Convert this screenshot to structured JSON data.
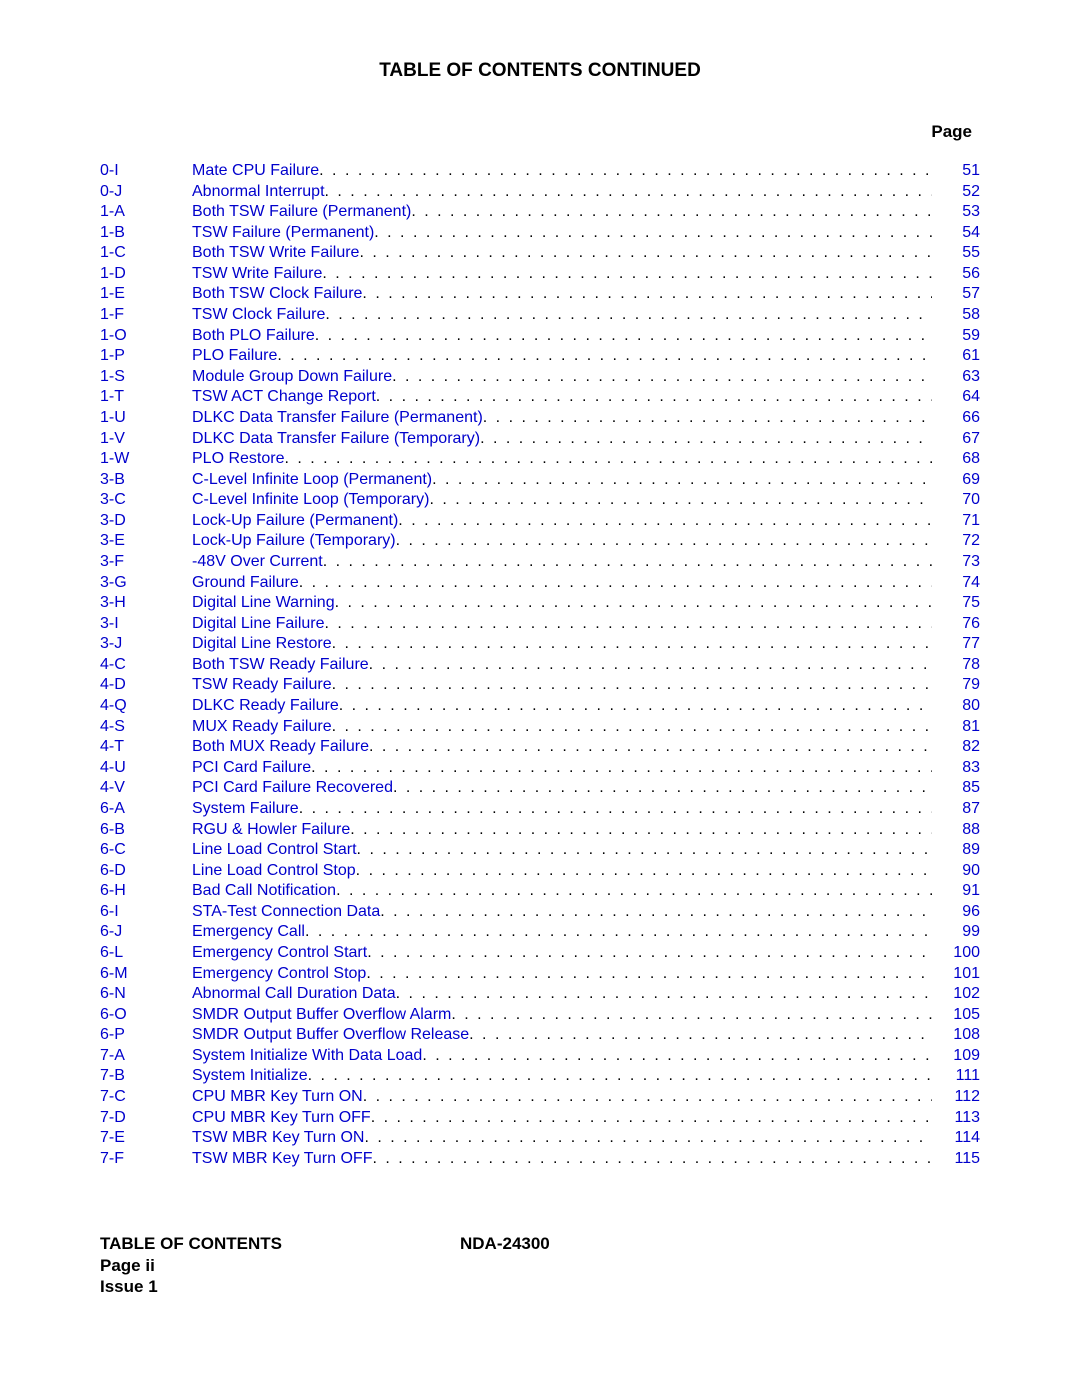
{
  "title": "TABLE OF CONTENTS CONTINUED",
  "page_header": "Page",
  "link_color": "#0000cc",
  "text_color": "#000000",
  "background_color": "#ffffff",
  "entries": [
    {
      "code": "0-I",
      "title": "Mate CPU Failure",
      "page": "51"
    },
    {
      "code": "0-J",
      "title": "Abnormal Interrupt ",
      "page": "52"
    },
    {
      "code": "1-A",
      "title": "Both TSW Failure (Permanent) ",
      "page": "53"
    },
    {
      "code": "1-B",
      "title": "TSW Failure (Permanent) ",
      "page": "54"
    },
    {
      "code": "1-C",
      "title": "Both TSW Write Failure ",
      "page": "55"
    },
    {
      "code": "1-D",
      "title": "TSW Write Failure ",
      "page": "56"
    },
    {
      "code": "1-E",
      "title": "Both TSW Clock Failure",
      "page": "57"
    },
    {
      "code": "1-F",
      "title": "TSW Clock Failure ",
      "page": "58"
    },
    {
      "code": "1-O",
      "title": "Both PLO Failure ",
      "page": "59"
    },
    {
      "code": "1-P",
      "title": "PLO Failure ",
      "page": "61"
    },
    {
      "code": "1-S",
      "title": "Module Group Down Failure ",
      "page": "63"
    },
    {
      "code": "1-T",
      "title": "TSW ACT Change Report ",
      "page": "64"
    },
    {
      "code": "1-U",
      "title": "DLKC Data Transfer Failure (Permanent) ",
      "page": "66"
    },
    {
      "code": "1-V",
      "title": "DLKC Data Transfer Failure (Temporary) ",
      "page": "67"
    },
    {
      "code": "1-W",
      "title": "PLO Restore ",
      "page": "68"
    },
    {
      "code": "3-B",
      "title": "C-Level Infinite Loop (Permanent) ",
      "page": "69"
    },
    {
      "code": "3-C",
      "title": "C-Level Infinite Loop (Temporary) ",
      "page": "70"
    },
    {
      "code": "3-D",
      "title": "Lock-Up Failure (Permanent)",
      "page": "71"
    },
    {
      "code": "3-E",
      "title": "Lock-Up Failure (Temporary)",
      "page": "72"
    },
    {
      "code": "3-F",
      "title": "-48V Over Current ",
      "page": "73"
    },
    {
      "code": "3-G",
      "title": "Ground Failure ",
      "page": "74"
    },
    {
      "code": "3-H",
      "title": "Digital Line Warning ",
      "page": "75"
    },
    {
      "code": "3-I",
      "title": "Digital Line Failure ",
      "page": "76"
    },
    {
      "code": "3-J",
      "title": "Digital Line Restore ",
      "page": "77"
    },
    {
      "code": "4-C",
      "title": "Both TSW Ready Failure ",
      "page": "78"
    },
    {
      "code": "4-D",
      "title": "TSW Ready Failure ",
      "page": "79"
    },
    {
      "code": "4-Q",
      "title": "DLKC Ready Failure ",
      "page": "80"
    },
    {
      "code": "4-S",
      "title": "MUX Ready Failure ",
      "page": "81"
    },
    {
      "code": "4-T",
      "title": "Both MUX Ready Failure ",
      "page": "82"
    },
    {
      "code": "4-U",
      "title": "PCI Card Failure ",
      "page": "83"
    },
    {
      "code": "4-V",
      "title": "PCI Card Failure Recovered ",
      "page": "85"
    },
    {
      "code": "6-A",
      "title": "System Failure ",
      "page": "87"
    },
    {
      "code": "6-B",
      "title": "RGU & Howler Failure ",
      "page": "88"
    },
    {
      "code": "6-C",
      "title": "Line Load Control Start ",
      "page": "89"
    },
    {
      "code": "6-D",
      "title": "Line Load Control Stop ",
      "page": "90"
    },
    {
      "code": "6-H",
      "title": "Bad Call Notification",
      "page": "91"
    },
    {
      "code": "6-I",
      "title": "STA-Test Connection Data ",
      "page": "96"
    },
    {
      "code": "6-J",
      "title": "Emergency Call ",
      "page": "99"
    },
    {
      "code": "6-L",
      "title": "Emergency Control Start ",
      "page": "100"
    },
    {
      "code": "6-M",
      "title": "Emergency Control Stop ",
      "page": "101"
    },
    {
      "code": "6-N",
      "title": "Abnormal Call Duration Data ",
      "page": "102"
    },
    {
      "code": "6-O",
      "title": "SMDR Output Buffer Overflow Alarm",
      "page": "105"
    },
    {
      "code": "6-P",
      "title": "SMDR Output Buffer Overflow Release",
      "page": "108"
    },
    {
      "code": "7-A",
      "title": "System Initialize With Data Load ",
      "page": "109"
    },
    {
      "code": "7-B",
      "title": "System Initialize ",
      "page": "111"
    },
    {
      "code": "7-C",
      "title": "CPU MBR Key Turn ON",
      "page": "112"
    },
    {
      "code": "7-D",
      "title": "CPU MBR Key Turn OFF",
      "page": "113"
    },
    {
      "code": "7-E",
      "title": "TSW MBR Key Turn ON ",
      "page": "114"
    },
    {
      "code": "7-F",
      "title": "TSW MBR Key Turn OFF ",
      "page": "115"
    }
  ],
  "footer": {
    "left1": "TABLE OF CONTENTS",
    "right1": "NDA-24300",
    "line2": "Page ii",
    "line3": "Issue 1"
  }
}
